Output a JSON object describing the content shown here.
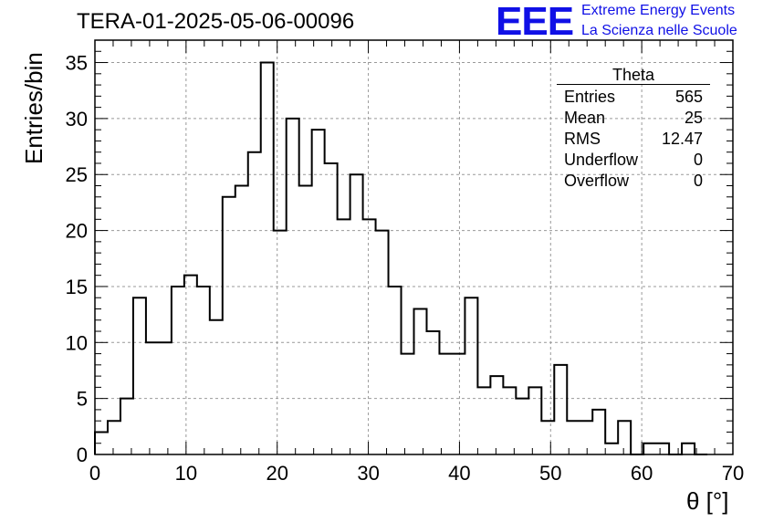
{
  "title": "TERA-01-2025-05-06-00096",
  "logo": {
    "mark": "EEE",
    "line1": "Extreme Energy Events",
    "line2": "La Scienza nelle Scuole",
    "color": "#1010e6"
  },
  "stats_box": {
    "name": "Theta",
    "rows": [
      {
        "label": "Entries",
        "value": "565"
      },
      {
        "label": "Mean",
        "value": "25"
      },
      {
        "label": "RMS",
        "value": "12.47"
      },
      {
        "label": "Underflow",
        "value": "0"
      },
      {
        "label": "Overflow",
        "value": "0"
      }
    ]
  },
  "chart_data": {
    "type": "bar",
    "title": "TERA-01-2025-05-06-00096",
    "xlabel": "θ [°]",
    "ylabel": "Entries/bin",
    "xlim": [
      0,
      70
    ],
    "ylim": [
      0,
      37
    ],
    "xticks": [
      0,
      10,
      20,
      30,
      40,
      50,
      60,
      70
    ],
    "yticks": [
      0,
      5,
      10,
      15,
      20,
      25,
      30,
      35
    ],
    "grid": true,
    "legend": "top-right",
    "bin_width": 1.4,
    "bin_start": 0,
    "values": [
      2,
      3,
      5,
      14,
      10,
      10,
      15,
      16,
      15,
      12,
      23,
      24,
      27,
      35,
      20,
      30,
      24,
      29,
      26,
      21,
      25,
      21,
      20,
      15,
      9,
      13,
      11,
      9,
      9,
      14,
      6,
      7,
      6,
      5,
      6,
      3,
      8,
      3,
      3,
      4,
      1,
      3,
      0,
      1,
      1,
      0,
      1,
      0
    ]
  }
}
